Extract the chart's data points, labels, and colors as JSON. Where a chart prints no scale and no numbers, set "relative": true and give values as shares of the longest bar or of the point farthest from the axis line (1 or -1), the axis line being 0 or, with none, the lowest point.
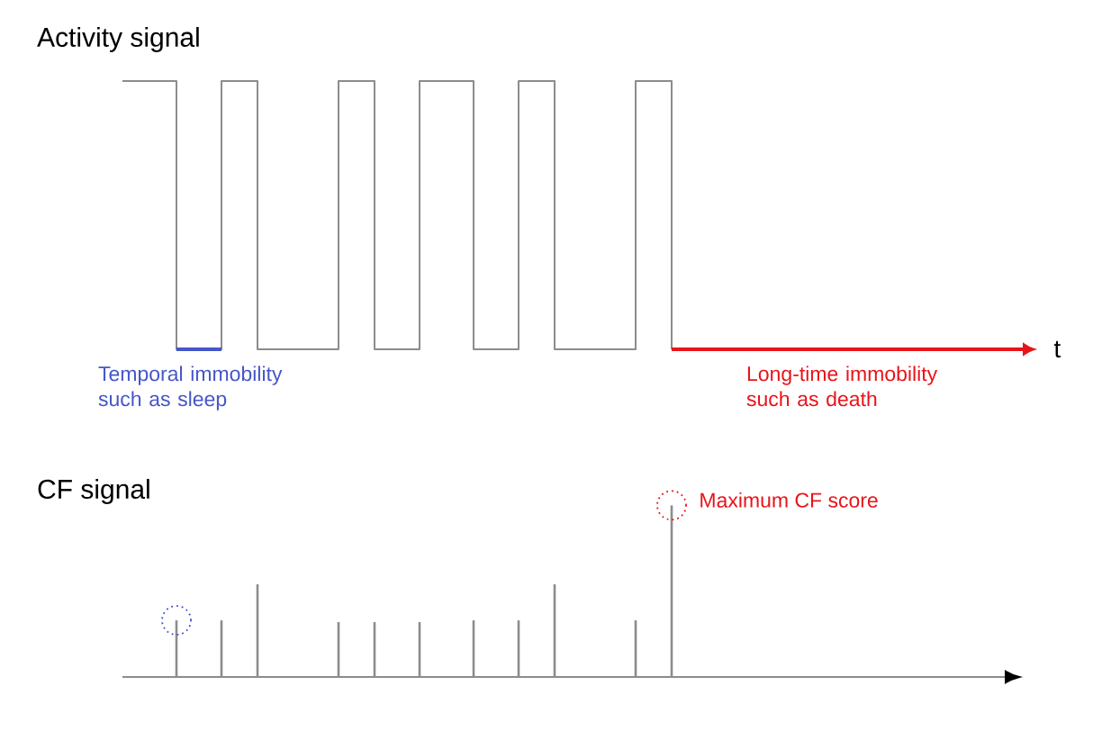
{
  "chart_data": [
    {
      "type": "step",
      "title": "Activity signal",
      "xlabel": "t",
      "relative": true,
      "tick_labels": false,
      "categories": [
        null,
        null,
        null,
        null,
        null,
        null,
        null,
        null,
        null,
        null,
        null,
        null,
        null,
        null,
        null,
        null,
        null,
        null,
        null,
        null,
        null,
        null,
        null,
        null,
        null,
        null,
        null,
        null,
        null,
        null,
        null,
        null,
        null,
        null,
        null,
        null,
        null,
        null,
        null,
        null,
        null,
        null,
        null,
        null,
        null,
        null,
        null,
        null,
        null,
        null,
        null,
        null,
        null,
        null,
        null,
        null,
        null,
        null,
        null,
        null,
        null,
        null,
        null,
        null,
        null,
        null,
        null,
        null,
        null,
        null,
        null,
        null,
        null,
        null,
        null,
        null,
        null,
        null,
        null,
        null,
        null,
        null,
        null,
        null,
        null,
        null,
        null,
        null,
        null,
        null,
        null,
        null,
        null,
        null,
        null,
        null,
        null,
        null,
        null,
        null,
        null
      ],
      "series": [
        {
          "color": "#8c8c8c",
          "values": [
            1,
            1,
            1,
            1,
            1,
            1,
            0,
            0,
            0,
            0,
            0,
            1,
            1,
            1,
            1,
            0,
            0,
            0,
            0,
            0,
            0,
            0,
            0,
            0,
            1,
            1,
            1,
            1,
            0,
            0,
            0,
            0,
            0,
            1,
            1,
            1,
            1,
            1,
            1,
            0,
            0,
            0,
            0,
            0,
            1,
            1,
            1,
            1,
            0,
            0,
            0,
            0,
            0,
            0,
            0,
            0,
            0,
            1,
            1,
            1,
            1,
            0,
            null,
            null,
            null,
            null,
            null,
            null,
            null,
            null,
            null,
            null,
            null,
            null,
            null,
            null,
            null,
            null,
            null,
            null,
            null,
            null,
            null,
            null,
            null,
            null,
            null,
            null,
            null,
            null,
            null,
            null,
            null,
            null,
            null,
            null,
            null,
            null,
            null,
            null,
            null
          ]
        },
        {
          "type": "line",
          "name": "Temporal immobility such as sleep",
          "color": "#4656c8",
          "values": [
            null,
            null,
            null,
            null,
            null,
            null,
            0,
            0,
            0,
            0,
            0,
            0,
            null,
            null,
            null,
            null,
            null,
            null,
            null,
            null,
            null,
            null,
            null,
            null,
            null,
            null,
            null,
            null,
            null,
            null,
            null,
            null,
            null,
            null,
            null,
            null,
            null,
            null,
            null,
            null,
            null,
            null,
            null,
            null,
            null,
            null,
            null,
            null,
            null,
            null,
            null,
            null,
            null,
            null,
            null,
            null,
            null,
            null,
            null,
            null,
            null,
            null,
            null,
            null,
            null,
            null,
            null,
            null,
            null,
            null,
            null,
            null,
            null,
            null,
            null,
            null,
            null,
            null,
            null,
            null,
            null,
            null,
            null,
            null,
            null,
            null,
            null,
            null,
            null,
            null,
            null,
            null,
            null,
            null,
            null,
            null,
            null,
            null,
            null,
            null,
            null
          ]
        },
        {
          "type": "line",
          "name": "Long-time immobility such as death",
          "color": "#e8141a",
          "values": [
            null,
            null,
            null,
            null,
            null,
            null,
            null,
            null,
            null,
            null,
            null,
            null,
            null,
            null,
            null,
            null,
            null,
            null,
            null,
            null,
            null,
            null,
            null,
            null,
            null,
            null,
            null,
            null,
            null,
            null,
            null,
            null,
            null,
            null,
            null,
            null,
            null,
            null,
            null,
            null,
            null,
            null,
            null,
            null,
            null,
            null,
            null,
            null,
            null,
            null,
            null,
            null,
            null,
            null,
            null,
            null,
            null,
            null,
            null,
            null,
            null,
            0,
            0,
            0,
            0,
            0,
            0,
            0,
            0,
            0,
            0,
            0,
            0,
            0,
            0,
            0,
            0,
            0,
            0,
            0,
            0,
            0,
            0,
            0,
            0,
            0,
            0,
            0,
            0,
            0,
            0,
            0,
            0,
            0,
            0,
            0,
            0,
            0,
            0,
            0,
            0
          ]
        }
      ]
    },
    {
      "type": "bar",
      "title": "CF signal",
      "relative": true,
      "tick_labels": false,
      "categories": [
        null,
        null,
        null,
        null,
        null,
        null,
        null,
        null,
        null,
        null,
        null,
        null,
        null,
        null,
        null,
        null,
        null,
        null,
        null,
        null,
        null,
        null,
        null,
        null,
        null,
        null,
        null,
        null,
        null,
        null,
        null,
        null,
        null,
        null,
        null,
        null,
        null,
        null,
        null,
        null,
        null,
        null,
        null,
        null,
        null,
        null,
        null,
        null,
        null,
        null,
        null,
        null,
        null,
        null,
        null,
        null,
        null,
        null,
        null,
        null,
        null,
        null,
        null,
        null,
        null,
        null,
        null,
        null,
        null,
        null,
        null,
        null,
        null,
        null,
        null,
        null,
        null,
        null,
        null,
        null,
        null,
        null,
        null,
        null,
        null,
        null,
        null,
        null,
        null,
        null,
        null,
        null,
        null,
        null,
        null,
        null,
        null,
        null,
        null,
        null,
        null
      ],
      "series": [
        {
          "color": "#8c8c8c",
          "values": [
            null,
            null,
            null,
            null,
            null,
            null,
            0.33,
            null,
            null,
            null,
            null,
            0.33,
            null,
            null,
            null,
            0.54,
            null,
            null,
            null,
            null,
            null,
            null,
            null,
            null,
            0.32,
            null,
            null,
            null,
            0.32,
            null,
            null,
            null,
            null,
            0.32,
            null,
            null,
            null,
            null,
            null,
            0.33,
            null,
            null,
            null,
            null,
            0.33,
            null,
            null,
            null,
            0.54,
            null,
            null,
            null,
            null,
            null,
            null,
            null,
            null,
            0.33,
            null,
            null,
            null,
            1,
            null,
            null,
            null,
            null,
            null,
            null,
            null,
            null,
            null,
            null,
            null,
            null,
            null,
            null,
            null,
            null,
            null,
            null,
            null,
            null,
            null,
            null,
            null,
            null,
            null,
            null,
            null,
            null,
            null,
            null,
            null,
            null,
            null,
            null,
            null,
            null,
            null,
            null,
            null
          ]
        },
        {
          "type": "scatter",
          "marker": "circle",
          "line_style": "dotted",
          "color": "#3f4fd0",
          "values": [
            null,
            null,
            null,
            null,
            null,
            null,
            0.33,
            null,
            null,
            null,
            null,
            null,
            null,
            null,
            null,
            null,
            null,
            null,
            null,
            null,
            null,
            null,
            null,
            null,
            null,
            null,
            null,
            null,
            null,
            null,
            null,
            null,
            null,
            null,
            null,
            null,
            null,
            null,
            null,
            null,
            null,
            null,
            null,
            null,
            null,
            null,
            null,
            null,
            null,
            null,
            null,
            null,
            null,
            null,
            null,
            null,
            null,
            null,
            null,
            null,
            null,
            null,
            null,
            null,
            null,
            null,
            null,
            null,
            null,
            null,
            null,
            null,
            null,
            null,
            null,
            null,
            null,
            null,
            null,
            null,
            null,
            null,
            null,
            null,
            null,
            null,
            null,
            null,
            null,
            null,
            null,
            null,
            null,
            null,
            null,
            null,
            null,
            null,
            null,
            null,
            null
          ]
        },
        {
          "type": "scatter",
          "marker": "circle",
          "line_style": "dotted",
          "name": "Maximum CF score",
          "color": "#e8141a",
          "values": [
            null,
            null,
            null,
            null,
            null,
            null,
            null,
            null,
            null,
            null,
            null,
            null,
            null,
            null,
            null,
            null,
            null,
            null,
            null,
            null,
            null,
            null,
            null,
            null,
            null,
            null,
            null,
            null,
            null,
            null,
            null,
            null,
            null,
            null,
            null,
            null,
            null,
            null,
            null,
            null,
            null,
            null,
            null,
            null,
            null,
            null,
            null,
            null,
            null,
            null,
            null,
            null,
            null,
            null,
            null,
            null,
            null,
            null,
            null,
            null,
            null,
            1,
            null,
            null,
            null,
            null,
            null,
            null,
            null,
            null,
            null,
            null,
            null,
            null,
            null,
            null,
            null,
            null,
            null,
            null,
            null,
            null,
            null,
            null,
            null,
            null,
            null,
            null,
            null,
            null,
            null,
            null,
            null,
            null,
            null,
            null,
            null,
            null,
            null,
            null,
            null
          ]
        }
      ]
    }
  ]
}
